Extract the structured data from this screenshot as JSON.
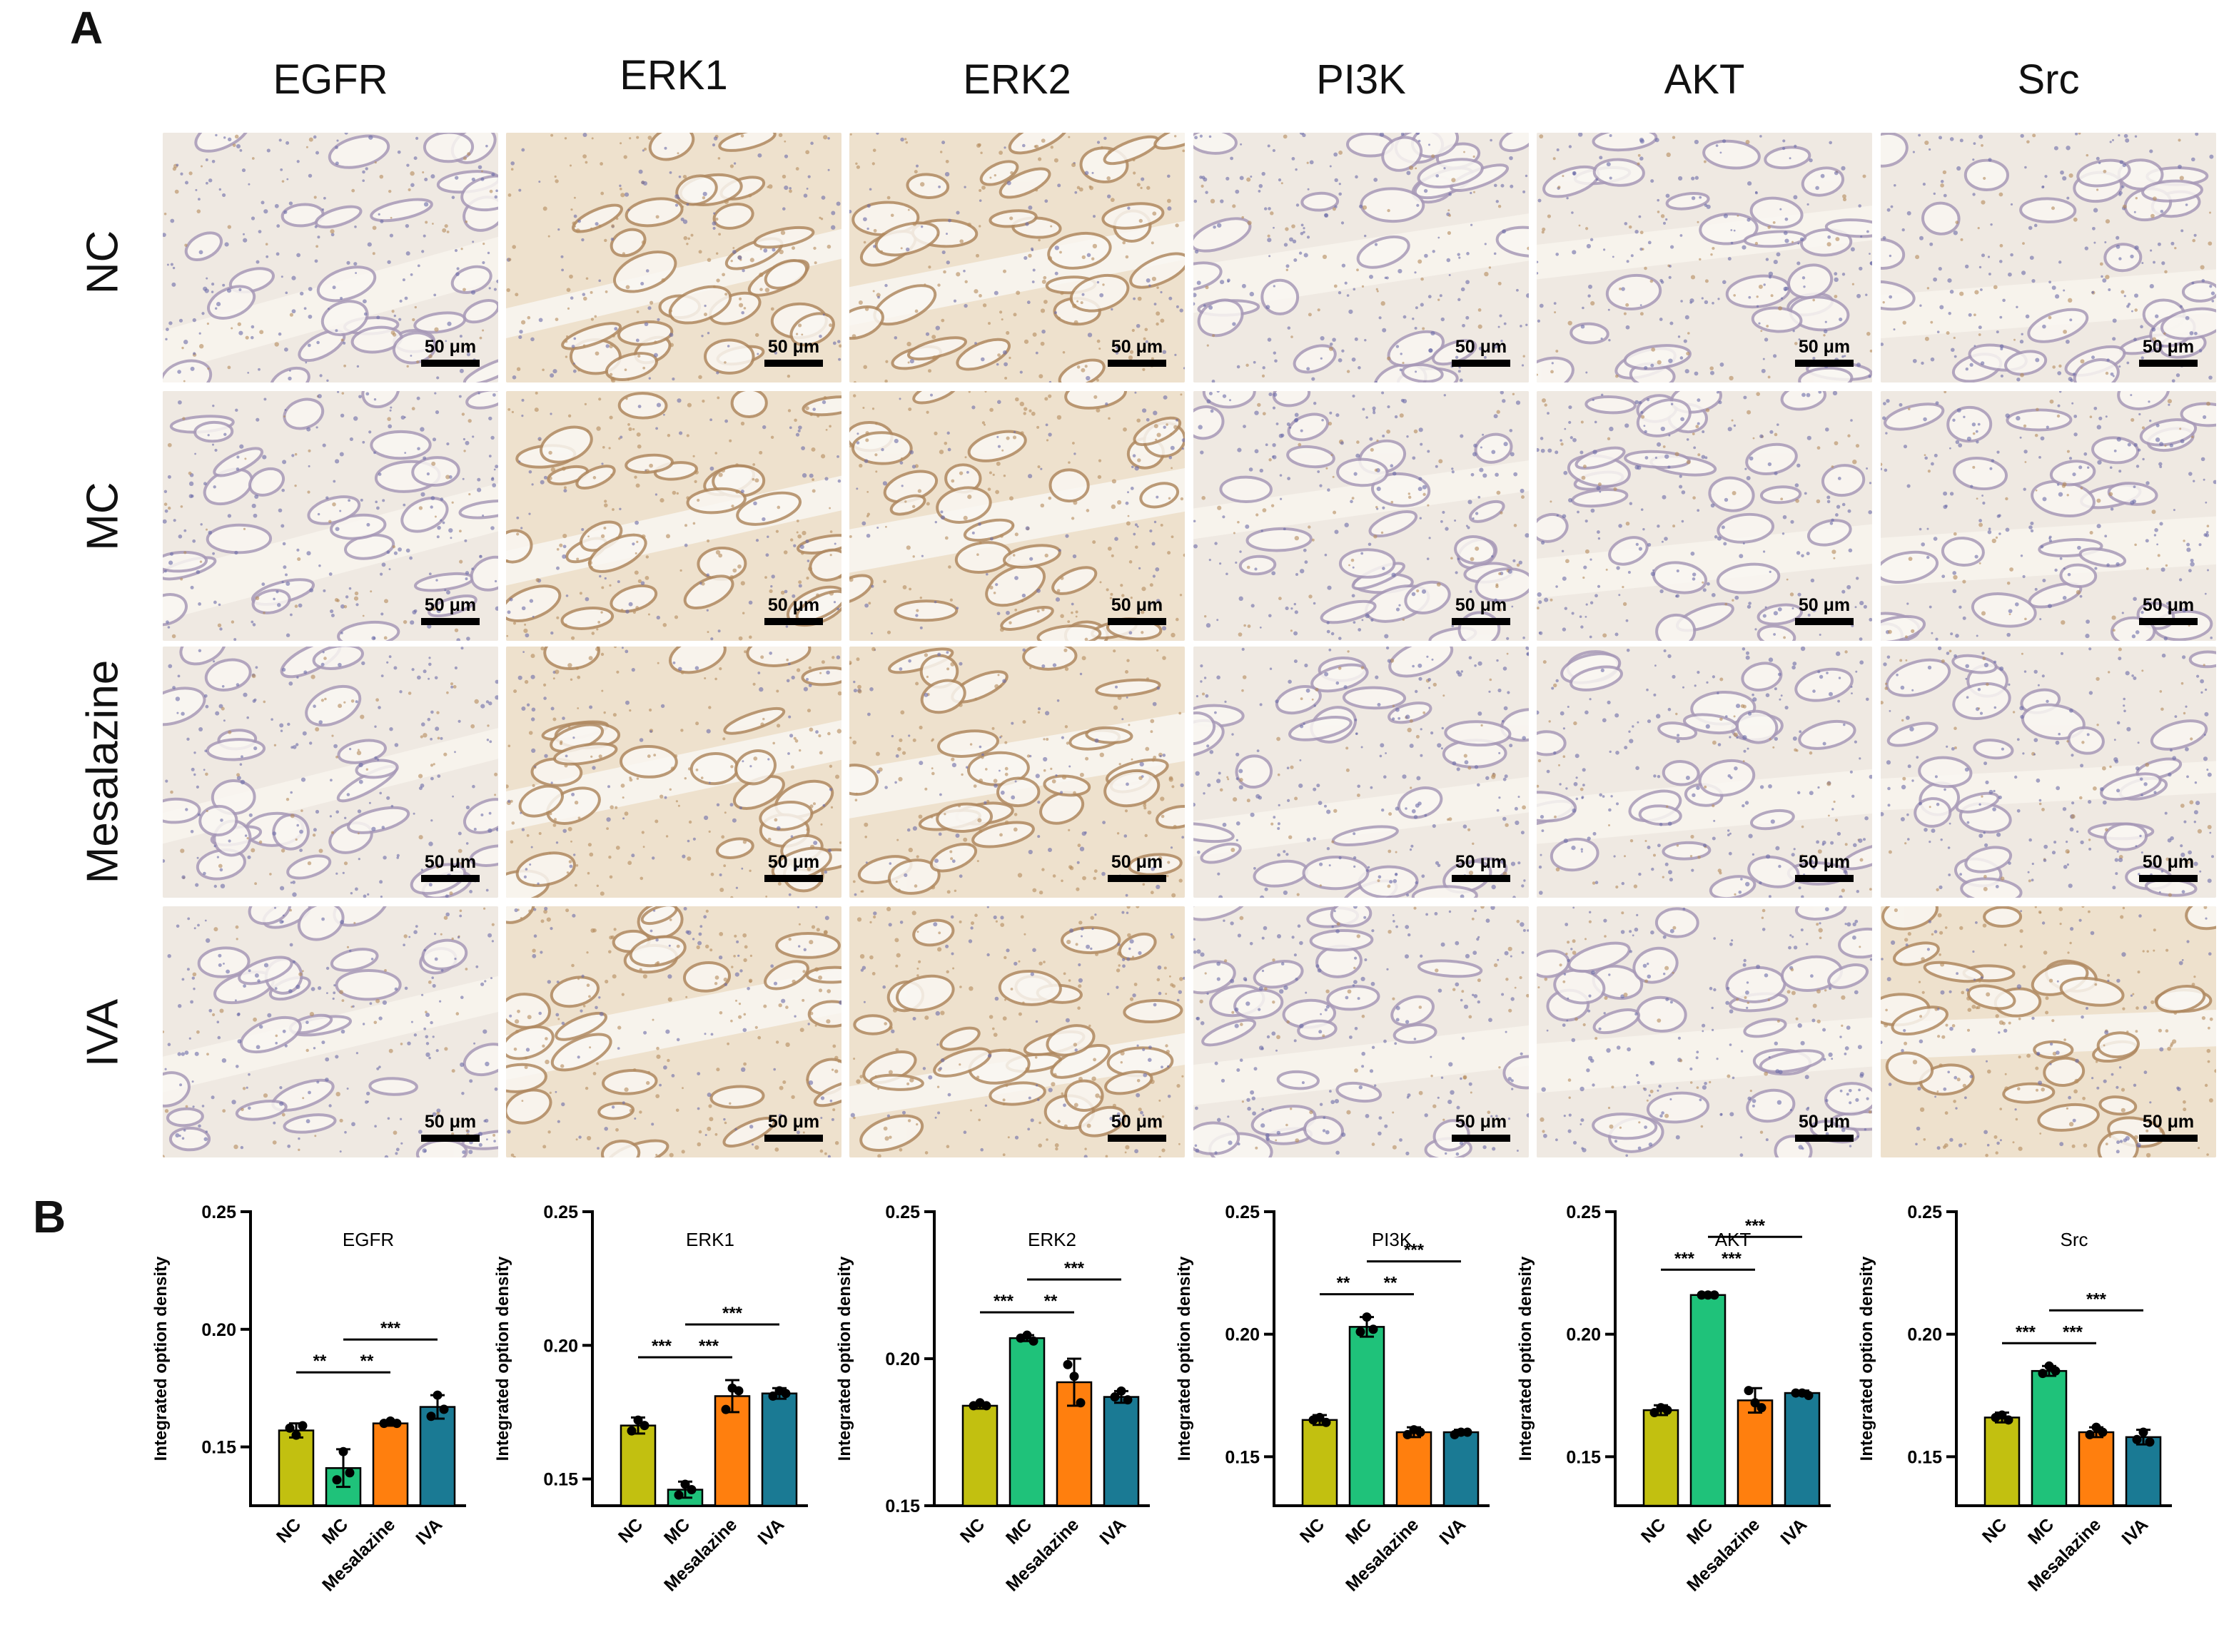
{
  "panel_a_label": "A",
  "panel_b_label": "B",
  "markers": [
    "EGFR",
    "ERK1",
    "ERK2",
    "PI3K",
    "AKT",
    "Src"
  ],
  "groups": [
    "NC",
    "MC",
    "Mesalazine",
    "IVA"
  ],
  "scale_bar_text": "50 μm",
  "colors": {
    "NC": "#c2c010",
    "MC": "#1fc27a",
    "Mesalazine": "#ff7f0e",
    "IVA": "#1a7a94",
    "tissue_bg": "#f3ede3",
    "stain_brown": "#b48a5c",
    "stain_blue": "#6a6aa8"
  },
  "chart_data": [
    {
      "type": "bar",
      "title": "EGFR",
      "ylabel": "Integrated option density",
      "categories": [
        "NC",
        "MC",
        "Mesalazine",
        "IVA"
      ],
      "values": [
        0.157,
        0.141,
        0.16,
        0.167
      ],
      "errors": [
        0.003,
        0.008,
        0.001,
        0.005
      ],
      "points": [
        [
          0.158,
          0.155,
          0.159
        ],
        [
          0.136,
          0.148,
          0.139
        ],
        [
          0.16,
          0.161,
          0.16
        ],
        [
          0.163,
          0.172,
          0.166
        ]
      ],
      "ylim": [
        0.125,
        0.25
      ],
      "yticks": [
        "0.15",
        "0.20",
        "0.25"
      ],
      "ytick_values": [
        0.15,
        0.2,
        0.25
      ],
      "significance": [
        {
          "from": 0,
          "to": 1,
          "label": "**",
          "level": 0
        },
        {
          "from": 1,
          "to": 2,
          "label": "**",
          "level": 0
        },
        {
          "from": 1,
          "to": 3,
          "label": "***",
          "level": 1
        }
      ]
    },
    {
      "type": "bar",
      "title": "ERK1",
      "ylabel": "Integrated option density",
      "categories": [
        "NC",
        "MC",
        "Mesalazine",
        "IVA"
      ],
      "values": [
        0.17,
        0.146,
        0.181,
        0.182
      ],
      "errors": [
        0.003,
        0.003,
        0.006,
        0.002
      ],
      "points": [
        [
          0.168,
          0.172,
          0.17
        ],
        [
          0.144,
          0.148,
          0.146
        ],
        [
          0.176,
          0.184,
          0.183
        ],
        [
          0.181,
          0.183,
          0.182
        ]
      ],
      "ylim": [
        0.14,
        0.25
      ],
      "yticks": [
        "0.15",
        "0.20",
        "0.25"
      ],
      "ytick_values": [
        0.15,
        0.2,
        0.25
      ],
      "significance": [
        {
          "from": 0,
          "to": 1,
          "label": "***",
          "level": 0
        },
        {
          "from": 1,
          "to": 2,
          "label": "***",
          "level": 0
        },
        {
          "from": 1,
          "to": 3,
          "label": "***",
          "level": 1
        }
      ]
    },
    {
      "type": "bar",
      "title": "ERK2",
      "ylabel": "Integrated option density",
      "categories": [
        "NC",
        "MC",
        "Mesalazine",
        "IVA"
      ],
      "values": [
        0.184,
        0.207,
        0.192,
        0.187
      ],
      "errors": [
        0.001,
        0.001,
        0.008,
        0.002
      ],
      "points": [
        [
          0.184,
          0.185,
          0.184
        ],
        [
          0.207,
          0.208,
          0.206
        ],
        [
          0.198,
          0.194,
          0.185
        ],
        [
          0.187,
          0.189,
          0.186
        ]
      ],
      "ylim": [
        0.15,
        0.25
      ],
      "yticks": [
        "0.15",
        "0.20",
        "0.25"
      ],
      "ytick_values": [
        0.15,
        0.2,
        0.25
      ],
      "significance": [
        {
          "from": 0,
          "to": 1,
          "label": "***",
          "level": 0
        },
        {
          "from": 1,
          "to": 2,
          "label": "**",
          "level": 0
        },
        {
          "from": 1,
          "to": 3,
          "label": "***",
          "level": 1
        }
      ]
    },
    {
      "type": "bar",
      "title": "PI3K",
      "ylabel": "Integrated option density",
      "categories": [
        "NC",
        "MC",
        "Mesalazine",
        "IVA"
      ],
      "values": [
        0.165,
        0.203,
        0.16,
        0.16
      ],
      "errors": [
        0.002,
        0.004,
        0.002,
        0.001
      ],
      "points": [
        [
          0.165,
          0.166,
          0.164
        ],
        [
          0.201,
          0.207,
          0.202
        ],
        [
          0.159,
          0.161,
          0.16
        ],
        [
          0.159,
          0.16,
          0.16
        ]
      ],
      "ylim": [
        0.13,
        0.25
      ],
      "yticks": [
        "0.15",
        "0.20",
        "0.25"
      ],
      "ytick_values": [
        0.15,
        0.2,
        0.25
      ],
      "significance": [
        {
          "from": 0,
          "to": 1,
          "label": "**",
          "level": 0
        },
        {
          "from": 1,
          "to": 2,
          "label": "**",
          "level": 0
        },
        {
          "from": 1,
          "to": 3,
          "label": "***",
          "level": 1
        }
      ]
    },
    {
      "type": "bar",
      "title": "AKT",
      "ylabel": "Integrated option density",
      "categories": [
        "NC",
        "MC",
        "Mesalazine",
        "IVA"
      ],
      "values": [
        0.169,
        0.216,
        0.173,
        0.176
      ],
      "errors": [
        0.002,
        0.001,
        0.005,
        0.001
      ],
      "points": [
        [
          0.168,
          0.17,
          0.169
        ],
        [
          0.216,
          0.216,
          0.216
        ],
        [
          0.177,
          0.172,
          0.17
        ],
        [
          0.176,
          0.176,
          0.175
        ]
      ],
      "ylim": [
        0.13,
        0.25
      ],
      "yticks": [
        "0.15",
        "0.20",
        "0.25"
      ],
      "ytick_values": [
        0.15,
        0.2,
        0.25
      ],
      "significance": [
        {
          "from": 0,
          "to": 1,
          "label": "***",
          "level": 0
        },
        {
          "from": 1,
          "to": 2,
          "label": "***",
          "level": 0
        },
        {
          "from": 1,
          "to": 3,
          "label": "***",
          "level": 1
        }
      ]
    },
    {
      "type": "bar",
      "title": "Src",
      "ylabel": "Integrated option density",
      "categories": [
        "NC",
        "MC",
        "Mesalazine",
        "IVA"
      ],
      "values": [
        0.166,
        0.185,
        0.16,
        0.158
      ],
      "errors": [
        0.002,
        0.002,
        0.002,
        0.003
      ],
      "points": [
        [
          0.166,
          0.167,
          0.165
        ],
        [
          0.184,
          0.187,
          0.185
        ],
        [
          0.159,
          0.162,
          0.16
        ],
        [
          0.157,
          0.16,
          0.156
        ]
      ],
      "ylim": [
        0.13,
        0.25
      ],
      "yticks": [
        "0.15",
        "0.20",
        "0.25"
      ],
      "ytick_values": [
        0.15,
        0.2,
        0.25
      ],
      "significance": [
        {
          "from": 0,
          "to": 1,
          "label": "***",
          "level": 0
        },
        {
          "from": 1,
          "to": 2,
          "label": "***",
          "level": 0
        },
        {
          "from": 1,
          "to": 3,
          "label": "***",
          "level": 1
        }
      ]
    }
  ]
}
